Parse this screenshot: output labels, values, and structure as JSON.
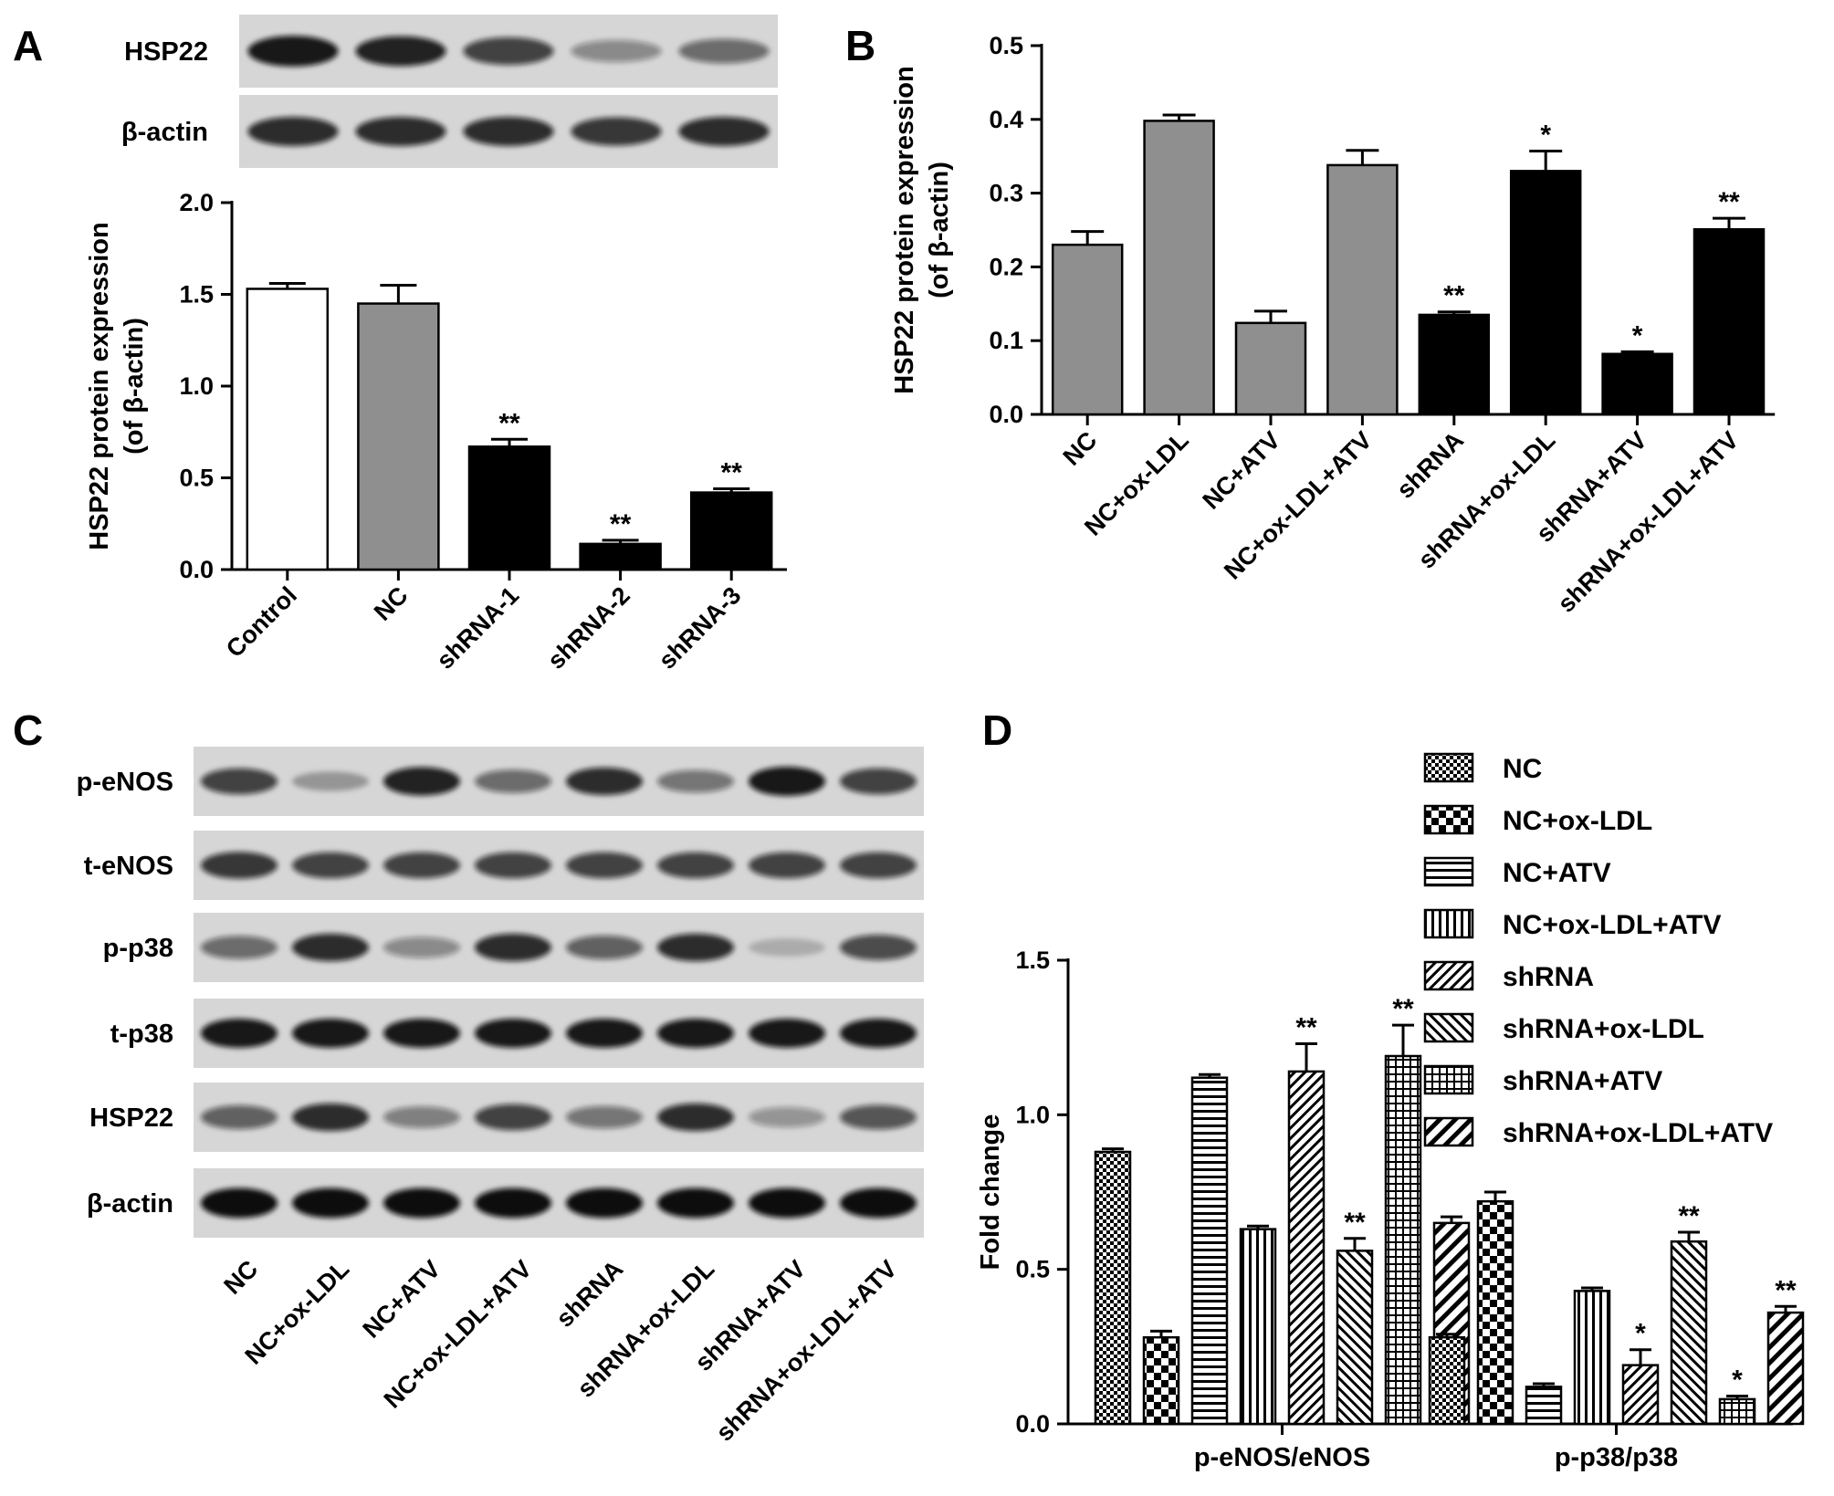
{
  "panel_labels": [
    "A",
    "B",
    "C",
    "D"
  ],
  "chart_data": [
    {
      "panel": "A",
      "type": "bar",
      "ylabel_line1": "HSP22 protein expression",
      "ylabel_line2": "(of β-actin)",
      "ylim": [
        0,
        2.0
      ],
      "yticks": [
        "0.0",
        "0.5",
        "1.0",
        "1.5",
        "2.0"
      ],
      "categories": [
        "Control",
        "NC",
        "shRNA-1",
        "shRNA-2",
        "shRNA-3"
      ],
      "values": [
        1.53,
        1.45,
        0.67,
        0.14,
        0.42
      ],
      "errors": [
        0.03,
        0.1,
        0.04,
        0.02,
        0.02
      ],
      "fills": [
        "#ffffff",
        "#8f8f8f",
        "#000000",
        "#000000",
        "#000000"
      ],
      "annotations": [
        "",
        "",
        "**",
        "**",
        "**"
      ]
    },
    {
      "panel": "B",
      "type": "bar",
      "ylabel_line1": "HSP22 protein expression",
      "ylabel_line2": "(of β-actin)",
      "ylim": [
        0,
        0.5
      ],
      "yticks": [
        "0.0",
        "0.1",
        "0.2",
        "0.3",
        "0.4",
        "0.5"
      ],
      "categories": [
        "NC",
        "NC+ox-LDL",
        "NC+ATV",
        "NC+ox-LDL+ATV",
        "shRNA",
        "shRNA+ox-LDL",
        "shRNA+ATV",
        "shRNA+ox-LDL+ATV"
      ],
      "values": [
        0.23,
        0.398,
        0.124,
        0.338,
        0.135,
        0.33,
        0.082,
        0.251
      ],
      "errors": [
        0.018,
        0.008,
        0.016,
        0.02,
        0.004,
        0.027,
        0.003,
        0.015
      ],
      "fills": [
        "#8f8f8f",
        "#8f8f8f",
        "#8f8f8f",
        "#8f8f8f",
        "#000000",
        "#000000",
        "#000000",
        "#000000"
      ],
      "annotations": [
        "",
        "",
        "",
        "",
        "**",
        "*",
        "*",
        "**"
      ]
    },
    {
      "panel": "D",
      "type": "bar",
      "ylabel": "Fold change",
      "ylim": [
        0,
        1.5
      ],
      "yticks": [
        "0.0",
        "0.5",
        "1.0",
        "1.5"
      ],
      "groups": [
        "p-eNOS/eNOS",
        "p-p38/p38"
      ],
      "series": [
        {
          "name": "NC",
          "pattern": "checker-fine",
          "values": [
            0.88,
            0.28
          ],
          "errors": [
            0.01,
            0.01
          ],
          "annotations": [
            "",
            ""
          ]
        },
        {
          "name": "NC+ox-LDL",
          "pattern": "checker-coarse",
          "values": [
            0.28,
            0.72
          ],
          "errors": [
            0.02,
            0.03
          ],
          "annotations": [
            "",
            ""
          ]
        },
        {
          "name": "NC+ATV",
          "pattern": "horizontal",
          "values": [
            1.12,
            0.12
          ],
          "errors": [
            0.01,
            0.01
          ],
          "annotations": [
            "",
            ""
          ]
        },
        {
          "name": "NC+ox-LDL+ATV",
          "pattern": "vertical",
          "values": [
            0.63,
            0.43
          ],
          "errors": [
            0.01,
            0.01
          ],
          "annotations": [
            "",
            ""
          ]
        },
        {
          "name": "shRNA",
          "pattern": "diag-up",
          "values": [
            1.14,
            0.19
          ],
          "errors": [
            0.09,
            0.05
          ],
          "annotations": [
            "**",
            "*"
          ]
        },
        {
          "name": "shRNA+ox-LDL",
          "pattern": "diag-down",
          "values": [
            0.56,
            0.59
          ],
          "errors": [
            0.04,
            0.03
          ],
          "annotations": [
            "**",
            "**"
          ]
        },
        {
          "name": "shRNA+ATV",
          "pattern": "grid",
          "values": [
            1.19,
            0.08
          ],
          "errors": [
            0.1,
            0.01
          ],
          "annotations": [
            "**",
            "*"
          ]
        },
        {
          "name": "shRNA+ox-LDL+ATV",
          "pattern": "diag-up-coarse",
          "values": [
            0.65,
            0.36
          ],
          "errors": [
            0.02,
            0.02
          ],
          "annotations": [
            "",
            "**"
          ]
        }
      ]
    }
  ],
  "blots": {
    "A": {
      "rows": [
        {
          "label": "HSP22",
          "band_intensity": [
            0.95,
            0.9,
            0.75,
            0.4,
            0.55
          ]
        },
        {
          "label": "β-actin",
          "band_intensity": [
            0.85,
            0.85,
            0.85,
            0.8,
            0.85
          ]
        }
      ]
    },
    "C": {
      "rows": [
        {
          "label": "p-eNOS",
          "band_intensity": [
            0.75,
            0.3,
            0.9,
            0.55,
            0.85,
            0.5,
            0.95,
            0.75
          ]
        },
        {
          "label": "t-eNOS",
          "band_intensity": [
            0.8,
            0.75,
            0.75,
            0.75,
            0.75,
            0.75,
            0.75,
            0.75
          ]
        },
        {
          "label": "p-p38",
          "band_intensity": [
            0.55,
            0.85,
            0.4,
            0.85,
            0.6,
            0.85,
            0.2,
            0.7
          ]
        },
        {
          "label": "t-p38",
          "band_intensity": [
            0.95,
            0.95,
            0.95,
            0.95,
            0.95,
            0.95,
            0.95,
            0.95
          ]
        },
        {
          "label": "HSP22",
          "band_intensity": [
            0.6,
            0.85,
            0.45,
            0.75,
            0.5,
            0.85,
            0.35,
            0.65
          ]
        },
        {
          "label": "β-actin",
          "band_intensity": [
            1.0,
            1.0,
            1.0,
            1.0,
            1.0,
            1.0,
            1.0,
            1.0
          ]
        }
      ],
      "lanes": [
        "NC",
        "NC+ox-LDL",
        "NC+ATV",
        "NC+ox-LDL+ATV",
        "shRNA",
        "shRNA+ox-LDL",
        "shRNA+ATV",
        "shRNA+ox-LDL+ATV"
      ]
    }
  }
}
